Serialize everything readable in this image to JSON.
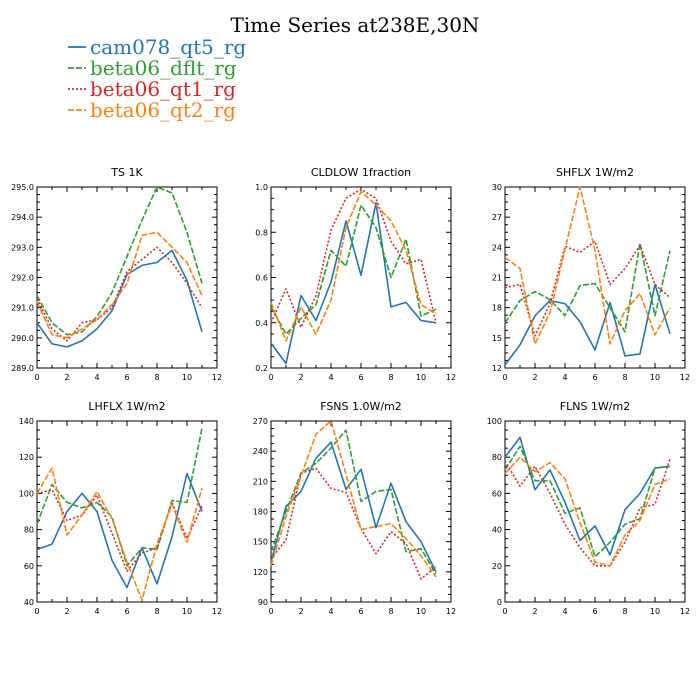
{
  "figure": {
    "title": "Time Series at238E,30N",
    "legend": [
      {
        "label": "cam078_qt5_rg",
        "color": "#1f77b4",
        "dash": "solid"
      },
      {
        "label": "beta06_dflt_rg",
        "color": "#2ca02c",
        "dash": "dashed"
      },
      {
        "label": "beta06_qt1_rg",
        "color": "#d62728",
        "dash": "dotted"
      },
      {
        "label": "beta06_qt2_rg",
        "color": "#ff7f0e",
        "dash": "dashed"
      }
    ]
  },
  "chart_data": [
    {
      "type": "line",
      "title": "TS   1K",
      "x": [
        0,
        1,
        2,
        3,
        4,
        5,
        6,
        7,
        8,
        9,
        10,
        11
      ],
      "xlim": [
        0,
        12
      ],
      "xticks": [
        0,
        2,
        4,
        6,
        8,
        10,
        12
      ],
      "ylim": [
        289,
        295
      ],
      "yticks": [
        "289.0",
        "290.0",
        "291.0",
        "292.0",
        "293.0",
        "294.0",
        "295.0"
      ],
      "ytick_values": [
        289,
        290,
        291,
        292,
        293,
        294,
        295
      ],
      "series": [
        {
          "name": "cam078_qt5_rg",
          "values": [
            290.5,
            289.8,
            289.7,
            289.9,
            290.3,
            290.9,
            292.1,
            292.4,
            292.5,
            292.9,
            291.9,
            290.2
          ]
        },
        {
          "name": "beta06_dflt_rg",
          "values": [
            291.4,
            290.5,
            290.1,
            290.2,
            290.7,
            291.5,
            292.7,
            293.9,
            295.0,
            294.8,
            293.5,
            291.8
          ]
        },
        {
          "name": "beta06_qt1_rg",
          "values": [
            291.3,
            290.3,
            289.9,
            290.5,
            290.6,
            291.0,
            292.2,
            292.6,
            293.0,
            292.5,
            291.8,
            291.0
          ]
        },
        {
          "name": "beta06_qt2_rg",
          "values": [
            291.2,
            290.1,
            290.0,
            290.3,
            290.6,
            291.1,
            291.8,
            293.4,
            293.5,
            293.0,
            292.5,
            291.4
          ]
        }
      ]
    },
    {
      "type": "line",
      "title": "CLDLOW   1fraction",
      "x": [
        0,
        1,
        2,
        3,
        4,
        5,
        6,
        7,
        8,
        9,
        10,
        11
      ],
      "xlim": [
        0,
        12
      ],
      "xticks": [
        0,
        2,
        4,
        6,
        8,
        10,
        12
      ],
      "ylim": [
        0.2,
        1.0
      ],
      "yticks": [
        "0.2",
        "0.4",
        "0.6",
        "0.8",
        "1.0"
      ],
      "ytick_values": [
        0.2,
        0.4,
        0.6,
        0.8,
        1.0
      ],
      "series": [
        {
          "name": "cam078_qt5_rg",
          "values": [
            0.31,
            0.22,
            0.52,
            0.41,
            0.58,
            0.85,
            0.61,
            0.93,
            0.47,
            0.49,
            0.41,
            0.4
          ]
        },
        {
          "name": "beta06_dflt_rg",
          "values": [
            0.47,
            0.35,
            0.42,
            0.48,
            0.72,
            0.65,
            0.92,
            0.82,
            0.6,
            0.77,
            0.43,
            0.46
          ]
        },
        {
          "name": "beta06_qt1_rg",
          "values": [
            0.4,
            0.55,
            0.38,
            0.52,
            0.81,
            0.95,
            0.99,
            0.95,
            0.76,
            0.66,
            0.68,
            0.4
          ]
        },
        {
          "name": "beta06_qt2_rg",
          "values": [
            0.49,
            0.32,
            0.47,
            0.35,
            0.5,
            0.82,
            0.98,
            0.92,
            0.85,
            0.72,
            0.48,
            0.44
          ]
        }
      ]
    },
    {
      "type": "line",
      "title": "SHFLX   1W/m2",
      "x": [
        0,
        1,
        2,
        3,
        4,
        5,
        6,
        7,
        8,
        9,
        10,
        11
      ],
      "xlim": [
        0,
        12
      ],
      "xticks": [
        0,
        2,
        4,
        6,
        8,
        10,
        12
      ],
      "ylim": [
        12,
        30
      ],
      "yticks": [
        "12",
        "15",
        "18",
        "21",
        "24",
        "27",
        "30"
      ],
      "ytick_values": [
        12,
        15,
        18,
        21,
        24,
        27,
        30
      ],
      "series": [
        {
          "name": "cam078_qt5_rg",
          "values": [
            12.3,
            14.3,
            17.2,
            18.7,
            18.4,
            16.6,
            13.8,
            18.5,
            13.2,
            13.4,
            20.3,
            15.4
          ]
        },
        {
          "name": "beta06_dflt_rg",
          "values": [
            16.5,
            18.7,
            19.6,
            18.8,
            17.2,
            20.2,
            20.4,
            18.0,
            15.6,
            24.4,
            17.2,
            23.7
          ]
        },
        {
          "name": "beta06_qt1_rg",
          "values": [
            20.0,
            20.3,
            15.2,
            18.4,
            24.1,
            23.5,
            24.6,
            20.3,
            21.9,
            24.2,
            20.3,
            19.0
          ]
        },
        {
          "name": "beta06_qt2_rg",
          "values": [
            23.0,
            21.9,
            14.4,
            17.5,
            23.8,
            30.0,
            23.7,
            14.4,
            17.7,
            19.4,
            15.3,
            18.0
          ]
        }
      ]
    },
    {
      "type": "line",
      "title": "LHFLX   1W/m2",
      "x": [
        0,
        1,
        2,
        3,
        4,
        5,
        6,
        7,
        8,
        9,
        10,
        11
      ],
      "xlim": [
        0,
        12
      ],
      "xticks": [
        0,
        2,
        4,
        6,
        8,
        10,
        12
      ],
      "ylim": [
        40,
        140
      ],
      "yticks": [
        "40",
        "60",
        "80",
        "100",
        "120",
        "140"
      ],
      "ytick_values": [
        40,
        60,
        80,
        100,
        120,
        140
      ],
      "series": [
        {
          "name": "cam078_qt5_rg",
          "values": [
            69,
            72,
            90,
            100,
            90,
            63,
            48,
            70,
            50,
            76,
            111,
            90
          ]
        },
        {
          "name": "beta06_dflt_rg",
          "values": [
            83,
            105,
            95,
            92,
            95,
            87,
            60,
            70,
            69,
            96,
            95,
            136
          ]
        },
        {
          "name": "beta06_qt1_rg",
          "values": [
            100,
            102,
            85,
            88,
            99,
            78,
            57,
            67,
            70,
            95,
            75,
            93
          ]
        },
        {
          "name": "beta06_qt2_rg",
          "values": [
            100,
            114,
            77,
            88,
            101,
            86,
            62,
            41,
            72,
            94,
            73,
            103
          ]
        }
      ]
    },
    {
      "type": "line",
      "title": "FSNS   1.0W/m2",
      "x": [
        0,
        1,
        2,
        3,
        4,
        5,
        6,
        7,
        8,
        9,
        10,
        11
      ],
      "xlim": [
        0,
        12
      ],
      "xticks": [
        0,
        2,
        4,
        6,
        8,
        10,
        12
      ],
      "ylim": [
        90,
        270
      ],
      "yticks": [
        "90",
        "120",
        "150",
        "180",
        "210",
        "240",
        "270"
      ],
      "ytick_values": [
        90,
        120,
        150,
        180,
        210,
        240,
        270
      ],
      "series": [
        {
          "name": "cam078_qt5_rg",
          "values": [
            130,
            185,
            200,
            233,
            249,
            202,
            222,
            164,
            208,
            170,
            150,
            120
          ]
        },
        {
          "name": "beta06_dflt_rg",
          "values": [
            140,
            180,
            218,
            228,
            243,
            261,
            190,
            200,
            202,
            140,
            143,
            118
          ]
        },
        {
          "name": "beta06_qt1_rg",
          "values": [
            133,
            152,
            218,
            223,
            203,
            199,
            163,
            138,
            160,
            148,
            113,
            125
          ]
        },
        {
          "name": "beta06_qt2_rg",
          "values": [
            126,
            175,
            215,
            257,
            270,
            217,
            162,
            165,
            168,
            153,
            136,
            115
          ]
        }
      ]
    },
    {
      "type": "line",
      "title": "FLNS   1W/m2",
      "x": [
        0,
        1,
        2,
        3,
        4,
        5,
        6,
        7,
        8,
        9,
        10,
        11
      ],
      "xlim": [
        0,
        12
      ],
      "xticks": [
        0,
        2,
        4,
        6,
        8,
        10,
        12
      ],
      "ylim": [
        0,
        100
      ],
      "yticks": [
        "0",
        "20",
        "40",
        "60",
        "80",
        "100"
      ],
      "ytick_values": [
        0,
        20,
        40,
        60,
        80,
        100
      ],
      "series": [
        {
          "name": "cam078_qt5_rg",
          "values": [
            80,
            91,
            62,
            73,
            55,
            34,
            42,
            26,
            51,
            60,
            74,
            75
          ]
        },
        {
          "name": "beta06_dflt_rg",
          "values": [
            73,
            86,
            67,
            67,
            49,
            52,
            25,
            33,
            43,
            46,
            74,
            75
          ]
        },
        {
          "name": "beta06_qt1_rg",
          "values": [
            78,
            64,
            75,
            60,
            43,
            30,
            20,
            20,
            33,
            52,
            54,
            79
          ]
        },
        {
          "name": "beta06_qt2_rg",
          "values": [
            71,
            80,
            72,
            77,
            68,
            44,
            22,
            20,
            37,
            45,
            65,
            68
          ]
        }
      ]
    }
  ]
}
